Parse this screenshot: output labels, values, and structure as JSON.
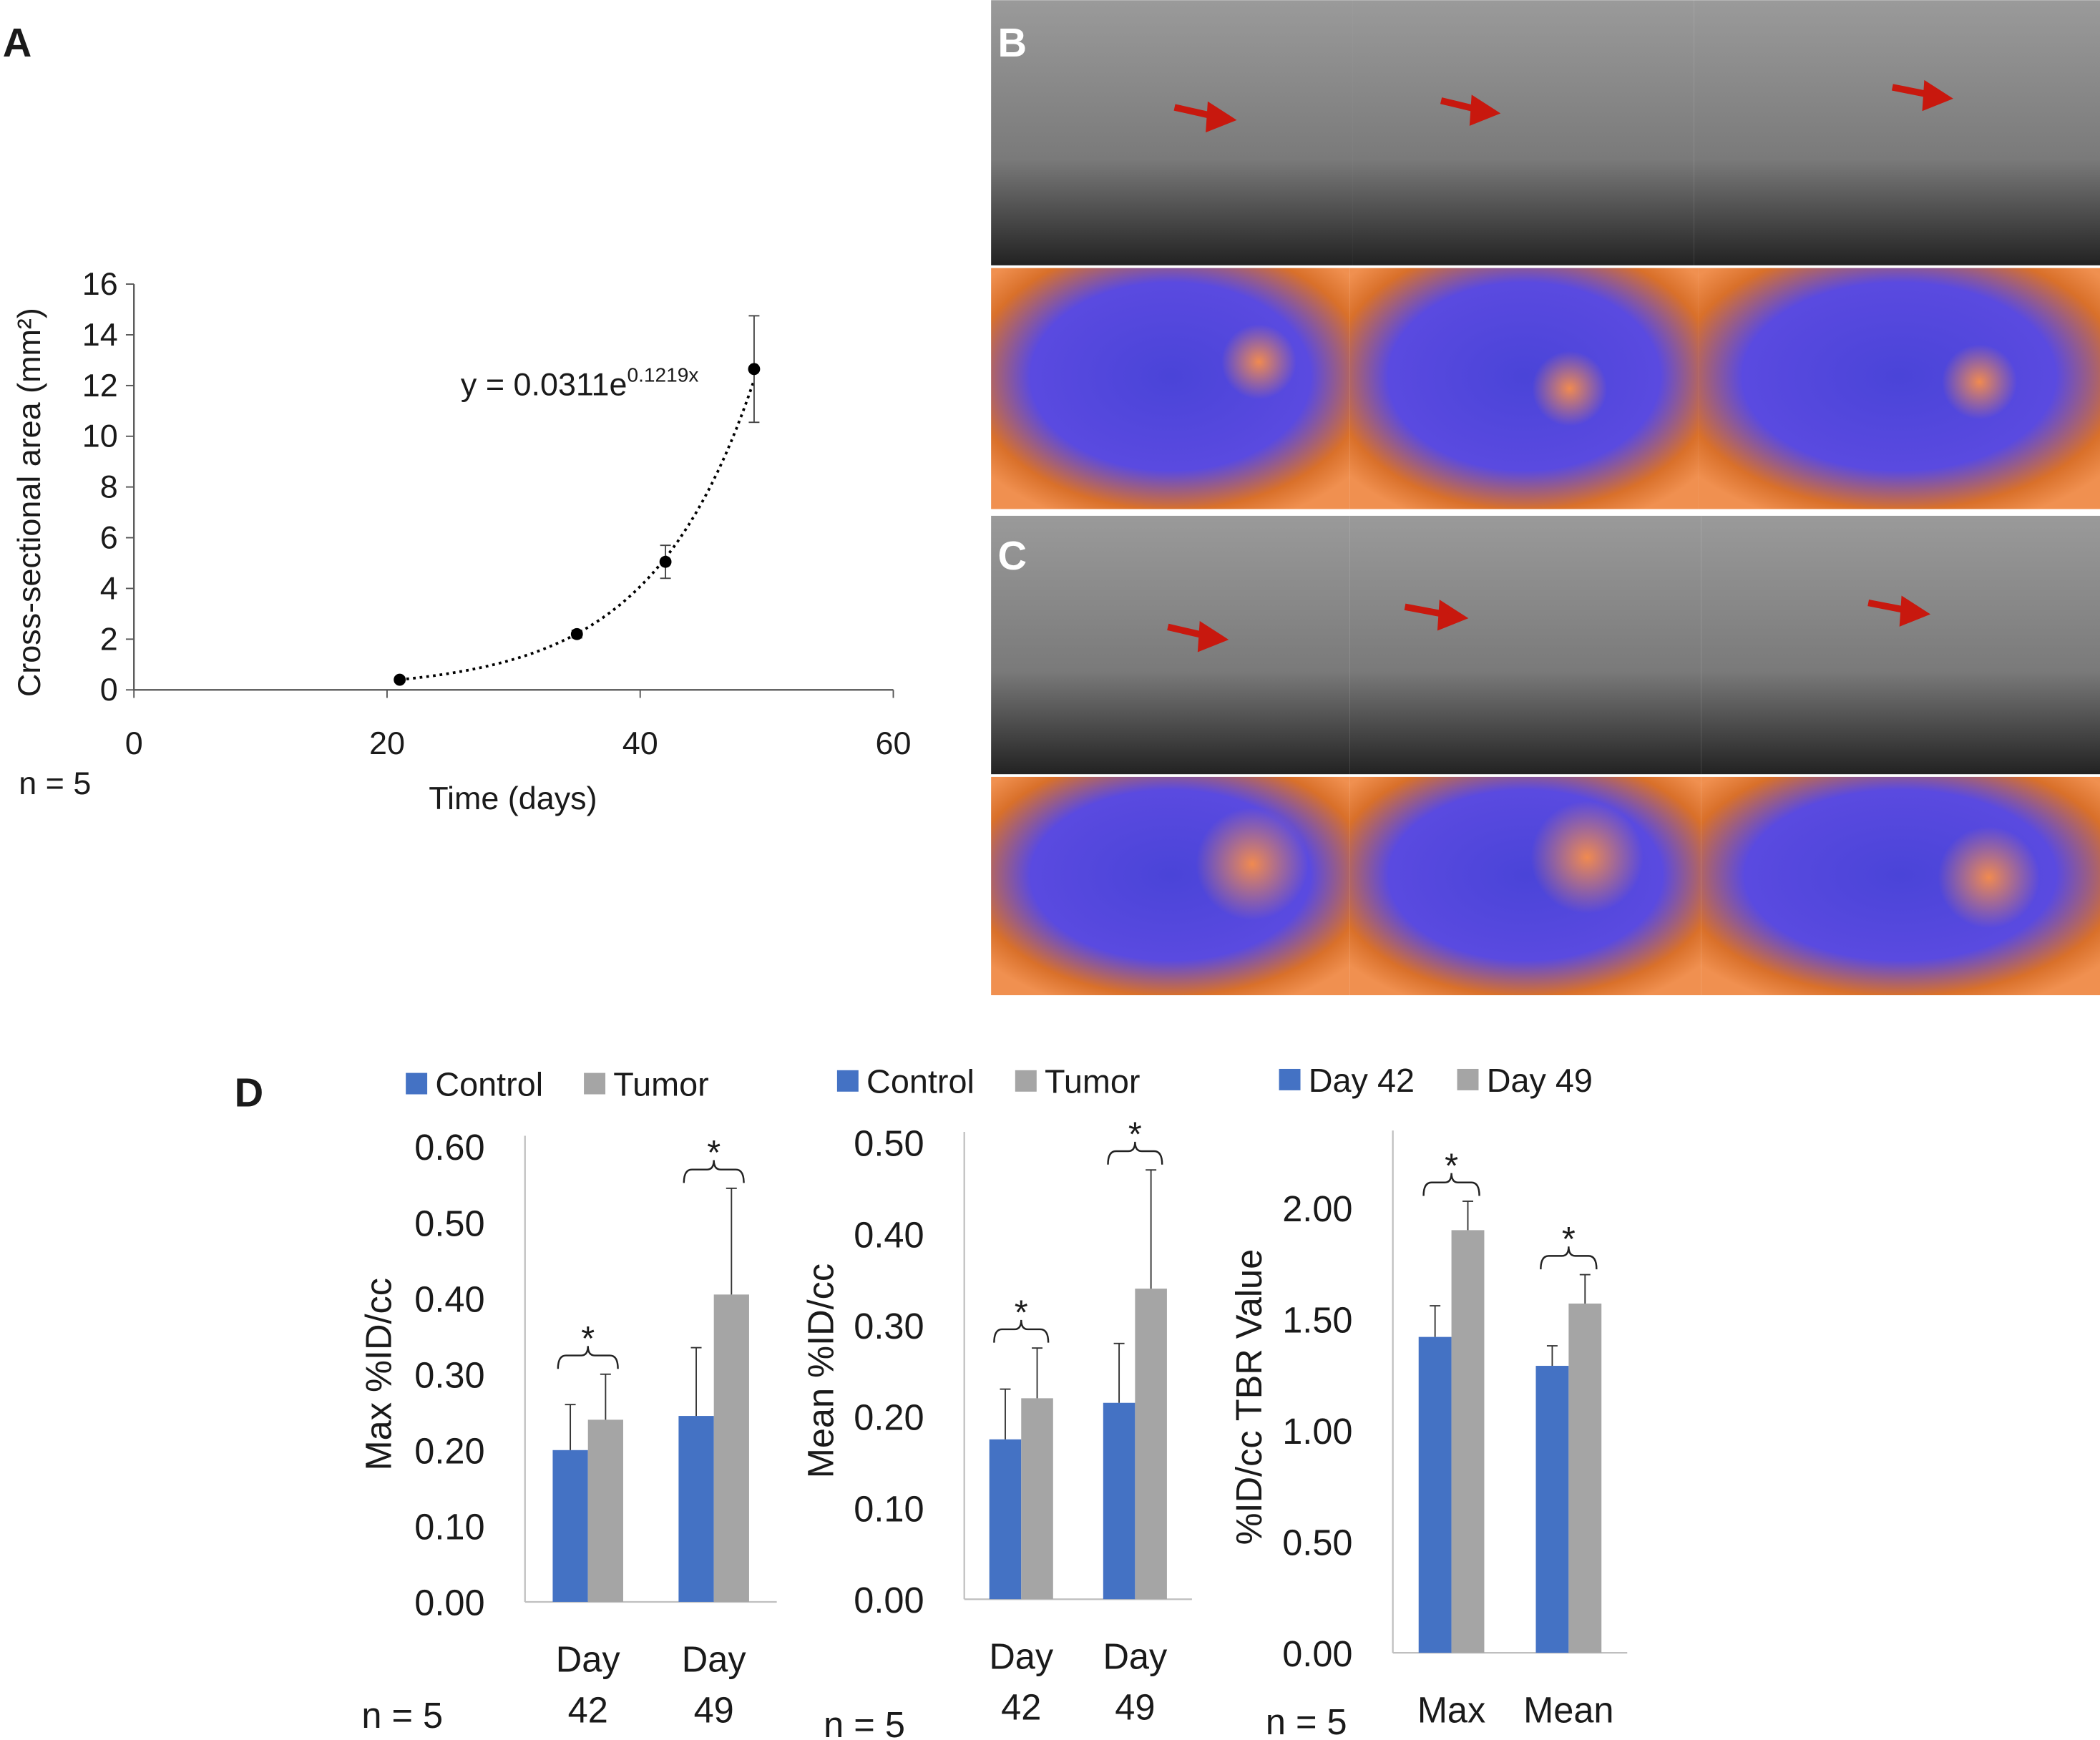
{
  "chart_data": [
    {
      "type": "scatter",
      "panel": "A",
      "x": [
        21,
        35,
        42,
        49
      ],
      "values": [
        0.4,
        2.2,
        5.05,
        12.65
      ],
      "errors": [
        0.1,
        0.15,
        0.65,
        2.1
      ],
      "xlim": [
        0,
        60
      ],
      "xticks": [
        0,
        20,
        40,
        60
      ],
      "ylim": [
        0,
        16
      ],
      "yticks": [
        0,
        2,
        4,
        6,
        8,
        10,
        12,
        14,
        16
      ],
      "xlabel": "Time (days)",
      "ylabel": "Cross-sectional area (mm²)",
      "note": "n = 5",
      "color": "#000000",
      "trendline": {
        "a": 0.0311,
        "b": 0.1219,
        "label": "y = 0.0311e",
        "exponent_label": "0.1219x"
      }
    },
    {
      "type": "bar",
      "panel": "D",
      "categories": [
        "Day 42",
        "Day 49"
      ],
      "series": [
        {
          "name": "Control",
          "color": "#4472c4",
          "values": [
            0.2,
            0.245
          ],
          "errors": [
            0.06,
            0.09
          ]
        },
        {
          "name": "Tumor",
          "color": "#a5a5a5",
          "values": [
            0.24,
            0.405
          ],
          "errors": [
            0.06,
            0.14
          ]
        }
      ],
      "ylim": [
        0,
        0.6
      ],
      "yticks": [
        {
          "value": 0,
          "label": "0.00"
        },
        {
          "value": 0.1,
          "label": "0.10"
        },
        {
          "value": 0.2,
          "label": "0.20"
        },
        {
          "value": 0.3,
          "label": "0.30"
        },
        {
          "value": 0.4,
          "label": "0.40"
        },
        {
          "value": 0.5,
          "label": "0.50"
        },
        {
          "value": 0.6,
          "label": "0.60"
        }
      ],
      "ylabel": "Max %ID/cc",
      "note": "n = 5",
      "annotations": [
        "*",
        "*"
      ]
    },
    {
      "type": "bar",
      "categories": [
        "Day 42",
        "Day 49"
      ],
      "series": [
        {
          "name": "Control",
          "color": "#4472c4",
          "values": [
            0.175,
            0.215
          ],
          "errors": [
            0.055,
            0.065
          ]
        },
        {
          "name": "Tumor",
          "color": "#a5a5a5",
          "values": [
            0.22,
            0.34
          ],
          "errors": [
            0.055,
            0.13
          ]
        }
      ],
      "ylim": [
        0,
        0.5
      ],
      "yticks": [
        {
          "value": 0,
          "label": "0.00"
        },
        {
          "value": 0.1,
          "label": "0.10"
        },
        {
          "value": 0.2,
          "label": "0.20"
        },
        {
          "value": 0.3,
          "label": "0.30"
        },
        {
          "value": 0.4,
          "label": "0.40"
        },
        {
          "value": 0.5,
          "label": "0.50"
        }
      ],
      "ylabel": "Mean %ID/cc",
      "note": "n = 5",
      "annotations": [
        "*",
        "*"
      ]
    },
    {
      "type": "bar",
      "categories": [
        "Max",
        "Mean"
      ],
      "series": [
        {
          "name": "Day 42",
          "color": "#4472c4",
          "values": [
            1.42,
            1.29
          ],
          "errors": [
            0.14,
            0.09
          ]
        },
        {
          "name": "Day 49",
          "color": "#a5a5a5",
          "values": [
            1.9,
            1.57
          ],
          "errors": [
            0.13,
            0.13
          ]
        }
      ],
      "ylim": [
        0,
        2.3
      ],
      "yticks": [
        {
          "value": 0,
          "label": "0.00"
        },
        {
          "value": 0.5,
          "label": "0.50"
        },
        {
          "value": 1,
          "label": "1.00"
        },
        {
          "value": 1.5,
          "label": "1.50"
        },
        {
          "value": 2,
          "label": "2.00"
        }
      ],
      "ylabel": "%ID/cc TBR Value",
      "note": "n = 5",
      "annotations": [
        "*",
        "*"
      ]
    }
  ],
  "image_panels": [
    {
      "label": "B"
    },
    {
      "label": "C"
    }
  ]
}
